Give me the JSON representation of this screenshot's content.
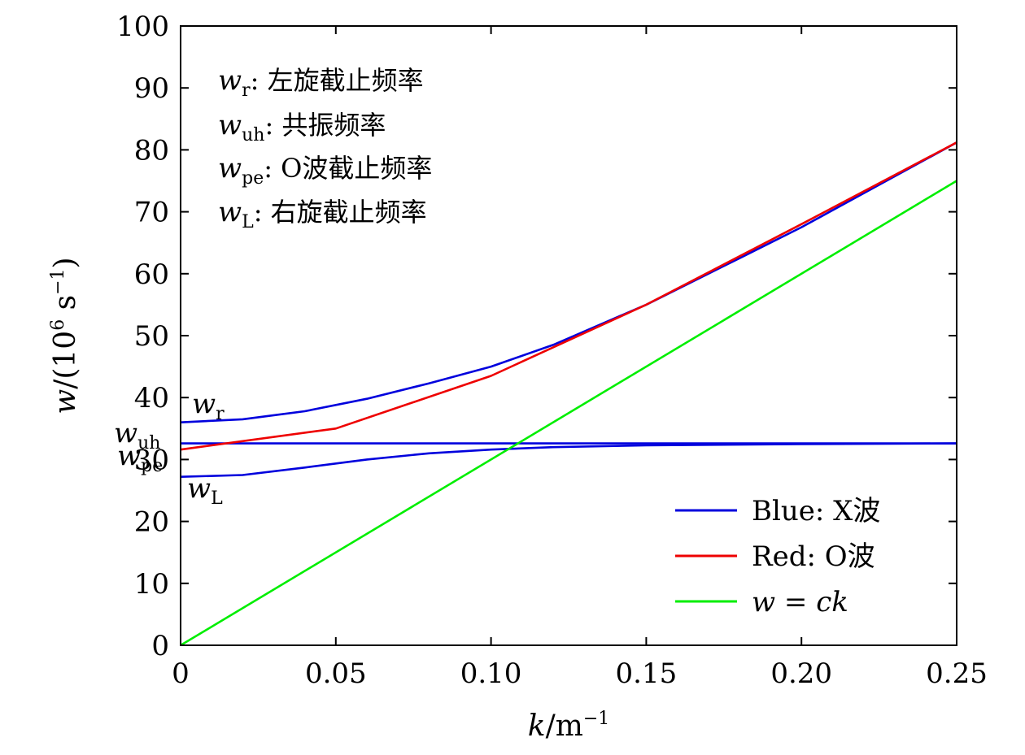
{
  "chart_data": {
    "type": "line",
    "xlabel": "k/m⁻¹",
    "ylabel": "w/(10⁶ s⁻¹)",
    "xlim": [
      0,
      0.25
    ],
    "ylim": [
      0,
      100
    ],
    "x_ticks": [
      "0",
      "0.05",
      "0.10",
      "0.15",
      "0.20",
      "0.25"
    ],
    "y_ticks": [
      "0",
      "10",
      "20",
      "30",
      "40",
      "50",
      "60",
      "70",
      "80",
      "90",
      "100"
    ],
    "x_tick_values": [
      0,
      0.05,
      0.1,
      0.15,
      0.2,
      0.25
    ],
    "y_tick_values": [
      0,
      10,
      20,
      30,
      40,
      50,
      60,
      70,
      80,
      90,
      100
    ],
    "grid": false,
    "legend": {
      "placement": "bottom-right",
      "entries": [
        {
          "label": "Blue: X波",
          "color": "#0000dd"
        },
        {
          "label": "Red: O波",
          "color": "#ee0000"
        },
        {
          "label": "w = ck",
          "color": "#00ee00"
        }
      ]
    },
    "annotations_box": [
      {
        "symbol": "w",
        "sub": "r",
        "text": ": 左旋截止频率"
      },
      {
        "symbol": "w",
        "sub": "uh",
        "text": ": 共振频率"
      },
      {
        "symbol": "w",
        "sub": "pe",
        "text": ": O波截止频率"
      },
      {
        "symbol": "w",
        "sub": "L",
        "text": ": 右旋截止频率"
      }
    ],
    "curve_labels": [
      {
        "symbol": "w",
        "sub": "r"
      },
      {
        "symbol": "w",
        "sub": "uh"
      },
      {
        "symbol": "w",
        "sub": "pe"
      },
      {
        "symbol": "w",
        "sub": "L"
      }
    ],
    "series": [
      {
        "color": "#0000dd",
        "x": [
          0,
          0.02,
          0.04,
          0.06,
          0.08,
          0.1,
          0.12,
          0.15,
          0.18,
          0.2,
          0.25
        ],
        "y": [
          36.0,
          36.5,
          37.8,
          39.8,
          42.3,
          45.0,
          48.5,
          55.0,
          62.5,
          67.5,
          81.2
        ]
      },
      {
        "color": "#0000dd",
        "x": [
          0,
          0.25
        ],
        "y": [
          32.6,
          32.6
        ]
      },
      {
        "color": "#0000dd",
        "x": [
          0,
          0.02,
          0.04,
          0.06,
          0.08,
          0.1,
          0.12,
          0.15,
          0.2,
          0.25
        ],
        "y": [
          27.2,
          27.5,
          28.7,
          30.0,
          31.0,
          31.6,
          32.0,
          32.3,
          32.5,
          32.6
        ]
      },
      {
        "color": "#ee0000",
        "x": [
          0,
          0.05,
          0.1,
          0.15,
          0.2,
          0.25
        ],
        "y": [
          31.6,
          35.0,
          43.5,
          55.0,
          68.0,
          81.2
        ]
      },
      {
        "color": "#00ee00",
        "x": [
          0,
          0.25
        ],
        "y": [
          0,
          75.0
        ]
      }
    ]
  }
}
